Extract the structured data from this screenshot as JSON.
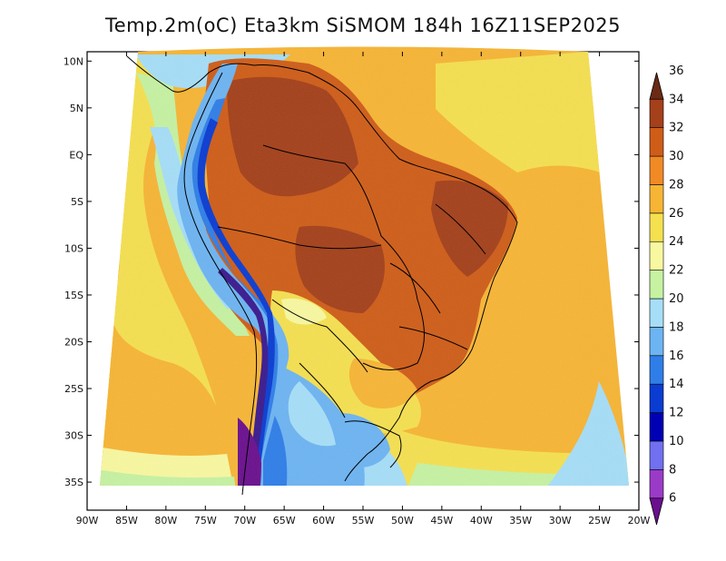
{
  "title": "Temp.2m(oC) Eta3km SiSMOM 184h 16Z11SEP2025",
  "map": {
    "lon_range": [
      -90,
      -20
    ],
    "lat_range": [
      -38,
      11
    ],
    "x_tick_labels": [
      "90W",
      "85W",
      "80W",
      "75W",
      "70W",
      "65W",
      "60W",
      "55W",
      "50W",
      "45W",
      "40W",
      "35W",
      "30W",
      "25W",
      "20W"
    ],
    "x_tick_values": [
      -90,
      -85,
      -80,
      -75,
      -70,
      -65,
      -60,
      -55,
      -50,
      -45,
      -40,
      -35,
      -30,
      -25,
      -20
    ],
    "y_tick_labels": [
      "10N",
      "5N",
      "EQ",
      "5S",
      "10S",
      "15S",
      "20S",
      "25S",
      "30S",
      "35S"
    ],
    "y_tick_values": [
      10,
      5,
      0,
      -5,
      -10,
      -15,
      -20,
      -25,
      -30,
      -35
    ]
  },
  "colorbar": {
    "unit": "oC",
    "levels": [
      6,
      8,
      10,
      12,
      14,
      16,
      18,
      20,
      22,
      24,
      26,
      28,
      30,
      32,
      34,
      36
    ],
    "colors": [
      "#6a0f8e",
      "#9a3bc8",
      "#7070f0",
      "#0000b4",
      "#0a3cd2",
      "#2f7ee8",
      "#6db4f2",
      "#a6def8",
      "#c6f2a2",
      "#f8f8a0",
      "#f5e050",
      "#f7b535",
      "#f18a25",
      "#cf5d18",
      "#a4401a",
      "#6b2a14"
    ]
  },
  "legend_ranges": {
    "ocean_warm": "26-28",
    "interior_hot": "30-34",
    "andes_cold": "6-16"
  }
}
